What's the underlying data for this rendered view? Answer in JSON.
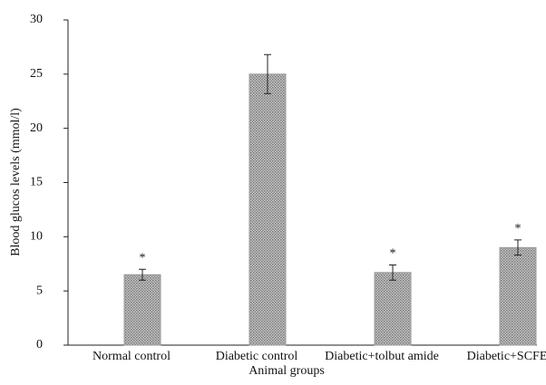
{
  "chart_data": {
    "type": "bar",
    "x_label": "Animal groups",
    "y_label": "Blood glucos levels (mmol/l)",
    "categories": [
      "Normal control",
      "Diabetic control",
      "Diabetic+tolbut amide",
      "Diabetic+SCFE"
    ],
    "values": [
      6.5,
      25,
      6.7,
      9.0
    ],
    "errors": [
      0.5,
      1.8,
      0.7,
      0.7
    ],
    "markers": [
      "*",
      null,
      "*",
      "*"
    ],
    "color": "#9a9a9a",
    "ylim": [
      0,
      30
    ],
    "yticks": [
      0,
      5,
      10,
      15,
      20,
      25,
      30
    ],
    "grid": false
  }
}
